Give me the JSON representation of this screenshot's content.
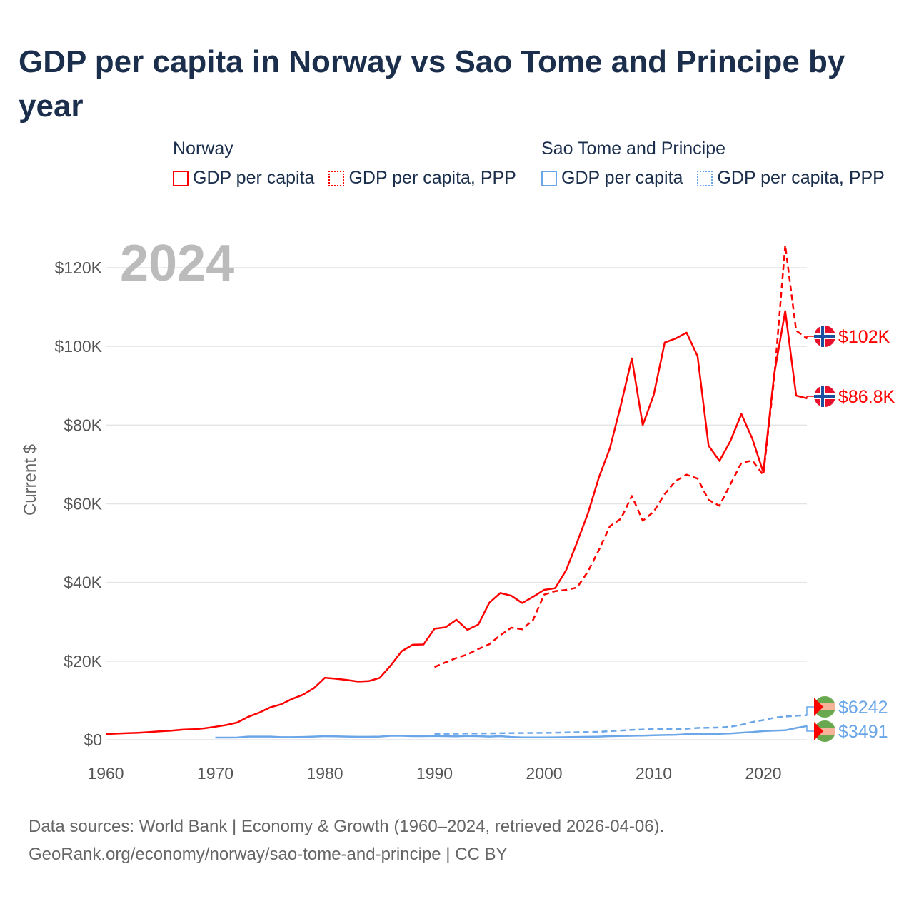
{
  "title": "GDP per capita in Norway vs Sao Tome and Principe by year",
  "legend": {
    "groups": [
      {
        "name": "Norway",
        "items": [
          "GDP per capita",
          "GDP per capita, PPP"
        ],
        "color": "#ff0000"
      },
      {
        "name": "Sao Tome and Principe",
        "items": [
          "GDP per capita",
          "GDP per capita, PPP"
        ],
        "color": "#6aa6e8"
      }
    ]
  },
  "footer": {
    "line1": "Data sources: World Bank | Economy & Growth (1960–2024, retrieved 2026-04-06).",
    "line2": "GeoRank.org/economy/norway/sao-tome-and-principe | CC BY"
  },
  "chart_data": {
    "type": "line",
    "title": "GDP per capita in Norway vs Sao Tome and Principe by year",
    "year_label": "2024",
    "ylabel": "Current $",
    "xlabel": "",
    "xlim": [
      1960,
      2024
    ],
    "ylim": [
      0,
      120000
    ],
    "xticks": [
      1960,
      1970,
      1980,
      1990,
      2000,
      2010,
      2020
    ],
    "yticks": [
      0,
      20000,
      40000,
      60000,
      80000,
      100000,
      120000
    ],
    "ytick_labels": [
      "$0",
      "$20K",
      "$40K",
      "$60K",
      "$80K",
      "$100K",
      "$120K"
    ],
    "series": [
      {
        "name": "Norway GDP per capita",
        "color": "#ff0000",
        "dash": false,
        "start": 1960,
        "end_label": "$86.8K",
        "values": [
          1442,
          1561,
          1667,
          1775,
          1937,
          2164,
          2317,
          2562,
          2693,
          2896,
          3306,
          3737,
          4384,
          5822,
          6876,
          8227,
          8996,
          10363,
          11464,
          13099,
          15772,
          15514,
          15197,
          14810,
          14928,
          15748,
          18888,
          22509,
          24167,
          24233,
          28243,
          28595,
          30524,
          27960,
          29315,
          34876,
          37321,
          36629,
          34788,
          36372,
          38131,
          38543,
          43084,
          50135,
          57604,
          66775,
          74115,
          85128,
          96944,
          80000,
          87693,
          101000,
          102000,
          103500,
          97500,
          74800,
          70900,
          76000,
          82800,
          76500,
          68000,
          93000,
          109000,
          87500,
          86800
        ]
      },
      {
        "name": "Norway GDP per capita, PPP",
        "color": "#ff0000",
        "dash": true,
        "start": 1990,
        "end_label": "$102K",
        "values": [
          18500,
          19700,
          20800,
          21700,
          23100,
          24300,
          26600,
          28500,
          28100,
          30500,
          36900,
          37800,
          38100,
          38700,
          42800,
          48300,
          54300,
          56200,
          62000,
          55700,
          58000,
          62500,
          65800,
          67400,
          66400,
          61000,
          59500,
          65000,
          70400,
          71000,
          67300,
          92000,
          125700,
          104000,
          102000
        ]
      },
      {
        "name": "Sao Tome and Principe GDP per capita",
        "color": "#6aa6e8",
        "dash": false,
        "start": 1970,
        "end_label": "$3491",
        "values": [
          550,
          550,
          560,
          800,
          800,
          800,
          650,
          650,
          700,
          800,
          900,
          850,
          800,
          750,
          750,
          800,
          1000,
          1000,
          900,
          900,
          950,
          900,
          850,
          950,
          900,
          800,
          900,
          700,
          600,
          600,
          600,
          620,
          650,
          700,
          750,
          800,
          900,
          950,
          1000,
          1050,
          1150,
          1200,
          1250,
          1400,
          1450,
          1400,
          1500,
          1600,
          1800,
          1950,
          2200,
          2300,
          2400,
          3000,
          3491
        ]
      },
      {
        "name": "Sao Tome and Principe GDP per capita, PPP",
        "color": "#6aa6e8",
        "dash": true,
        "start": 1990,
        "end_label": "$6242",
        "values": [
          1500,
          1520,
          1550,
          1580,
          1600,
          1620,
          1650,
          1680,
          1700,
          1720,
          1750,
          1800,
          1850,
          1900,
          1950,
          2000,
          2200,
          2350,
          2500,
          2600,
          2700,
          2750,
          2700,
          2800,
          3000,
          3050,
          3100,
          3300,
          3800,
          4500,
          5000,
          5600,
          5900,
          6100,
          6242
        ]
      }
    ]
  }
}
